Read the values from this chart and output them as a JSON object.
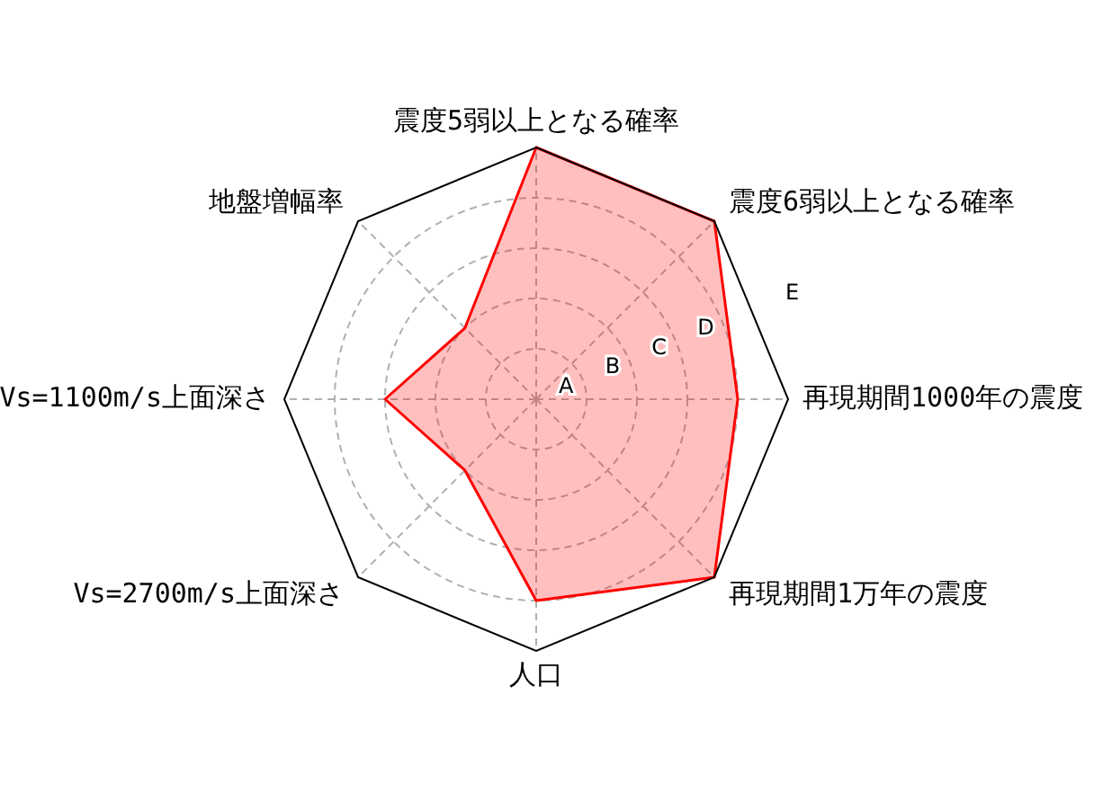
{
  "chart_data": {
    "type": "radar",
    "categories": [
      "震度5弱以上となる確率",
      "震度6弱以上となる確率",
      "再現期間1000年の震度",
      "再現期間1万年の震度",
      "人口",
      "Vs=2700m/s上面深さ",
      "Vs=1100m/s上面深さ",
      "地盤増幅率"
    ],
    "series": [
      {
        "color": "#ff0000",
        "values": [
          5,
          5,
          4,
          5,
          4,
          2,
          3,
          2
        ]
      }
    ],
    "ylim": [
      0,
      5
    ],
    "yticks": [
      {
        "value": 1,
        "label": "A"
      },
      {
        "value": 2,
        "label": "B"
      },
      {
        "value": 3,
        "label": "C"
      },
      {
        "value": 4,
        "label": "D"
      },
      {
        "value": 5,
        "label": "E"
      }
    ],
    "grid": true
  }
}
